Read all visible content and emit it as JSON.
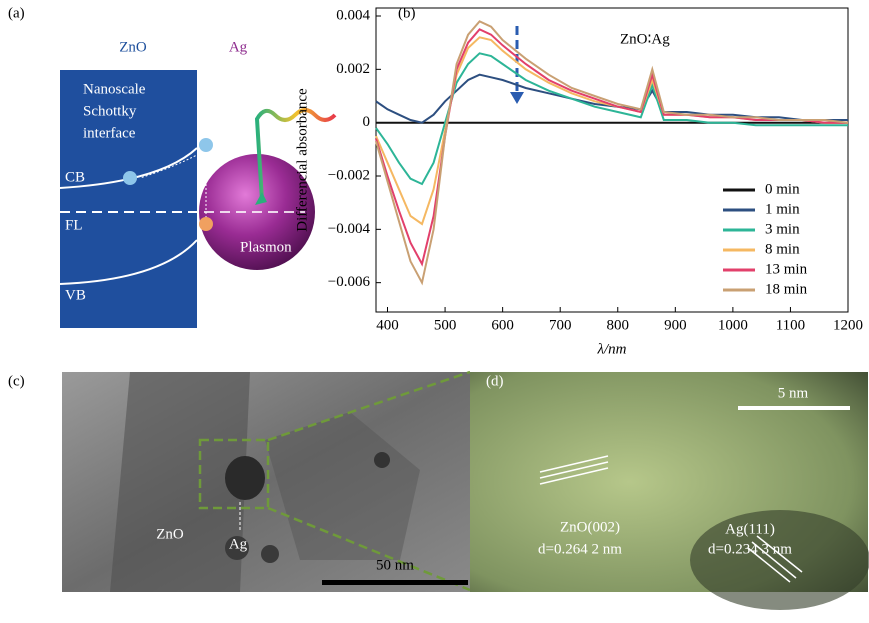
{
  "panel_a": {
    "label": "(a)",
    "zno": "ZnO",
    "ag": "Ag",
    "interface": [
      "Nanoscale",
      "Schottky",
      "interface"
    ],
    "cb": "CB",
    "fl": "FL",
    "vb": "VB",
    "plasmon": "Plasmon"
  },
  "chart_data": {
    "type": "line",
    "panel_label": "(b)",
    "annotation": "ZnO∶Ag",
    "x_label": "λ/nm",
    "y_label": "Differencial absorbance",
    "x": [
      380,
      400,
      420,
      440,
      460,
      480,
      500,
      520,
      540,
      560,
      580,
      600,
      640,
      680,
      720,
      760,
      800,
      840,
      860,
      880,
      920,
      960,
      1000,
      1040,
      1080,
      1120,
      1160,
      1200
    ],
    "series": [
      {
        "name": "0 min",
        "color": "#111111",
        "values": [
          0,
          0,
          0,
          0,
          0,
          0,
          0,
          0,
          0,
          0,
          0,
          0,
          0,
          0,
          0,
          0,
          0,
          0,
          0,
          0,
          0,
          0,
          0,
          0,
          0,
          0,
          0,
          0
        ]
      },
      {
        "name": "1 min",
        "color": "#2d4f80",
        "values": [
          0.0008,
          0.0005,
          0.0003,
          0.0001,
          0,
          0.0003,
          0.0008,
          0.0012,
          0.0016,
          0.0018,
          0.0017,
          0.0016,
          0.0013,
          0.0011,
          0.0009,
          0.0007,
          0.0006,
          0.0005,
          0.0012,
          0.0004,
          0.0004,
          0.0003,
          0.0003,
          0.0002,
          0.0002,
          0.0001,
          0.0001,
          0.0001
        ]
      },
      {
        "name": "3 min",
        "color": "#2db597",
        "values": [
          -0.0002,
          -0.0008,
          -0.0015,
          -0.0021,
          -0.0023,
          -0.0015,
          0,
          0.0015,
          0.0022,
          0.0026,
          0.0025,
          0.0022,
          0.0016,
          0.0012,
          0.0009,
          0.0006,
          0.0004,
          0.0002,
          0.0014,
          0.0001,
          0.0001,
          0,
          0,
          -0.0001,
          -0.0001,
          -0.0001,
          -0.0001,
          -0.0001
        ]
      },
      {
        "name": "8 min",
        "color": "#f5b862",
        "values": [
          -0.0005,
          -0.0015,
          -0.0025,
          -0.0035,
          -0.0038,
          -0.0025,
          -0.0003,
          0.0018,
          0.0028,
          0.0032,
          0.0031,
          0.0027,
          0.002,
          0.0015,
          0.0011,
          0.0008,
          0.0006,
          0.0004,
          0.0016,
          0.0003,
          0.0003,
          0.0002,
          0.0002,
          0.0001,
          0.0001,
          0.0001,
          0,
          0
        ]
      },
      {
        "name": "13 min",
        "color": "#e2406b",
        "values": [
          -0.0006,
          -0.002,
          -0.0033,
          -0.0045,
          -0.0053,
          -0.0035,
          -0.0005,
          0.002,
          0.003,
          0.0035,
          0.0033,
          0.0029,
          0.0022,
          0.0016,
          0.0012,
          0.0009,
          0.0006,
          0.0004,
          0.0018,
          0.0003,
          0.0003,
          0.0002,
          0.0002,
          0.0001,
          0.0001,
          0.0001,
          0,
          0
        ]
      },
      {
        "name": "18 min",
        "color": "#c9a073",
        "values": [
          -0.0007,
          -0.0022,
          -0.0037,
          -0.0052,
          -0.006,
          -0.004,
          -0.0005,
          0.0022,
          0.0033,
          0.0038,
          0.0036,
          0.0031,
          0.0024,
          0.0018,
          0.0013,
          0.001,
          0.0007,
          0.0005,
          0.002,
          0.0004,
          0.0003,
          0.0003,
          0.0002,
          0.0002,
          0.0001,
          0.0001,
          0.0001,
          0
        ]
      }
    ],
    "xlim": [
      380,
      1200
    ],
    "xticks": [
      400,
      500,
      600,
      700,
      800,
      900,
      1000,
      1100,
      1200
    ],
    "ylim": [
      -0.0071,
      0.0043
    ],
    "yticks": [
      {
        "value": -0.006,
        "label": "−0.006"
      },
      {
        "value": -0.004,
        "label": "−0.004"
      },
      {
        "value": -0.002,
        "label": "−0.002"
      },
      0,
      0.002,
      0.004
    ],
    "legend": "lower right"
  },
  "panel_c": {
    "label": "(c)",
    "zno": "ZnO",
    "ag": "Ag",
    "scale": "50 nm"
  },
  "panel_d": {
    "label": "(d)",
    "scale": "5 nm",
    "zno_plane": "ZnO(002)",
    "zno_d": "d=0.264 2 nm",
    "ag_plane": "Ag(111)",
    "ag_d": "d=0.234 3 nm"
  }
}
